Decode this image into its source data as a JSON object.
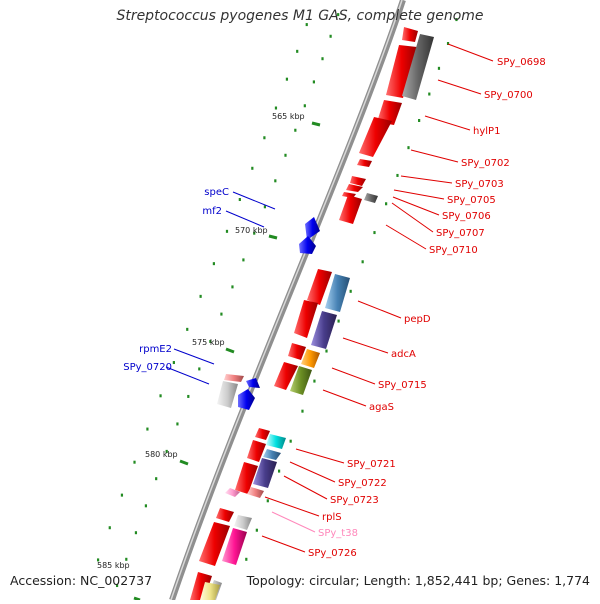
{
  "title": "Streptococcus pyogenes M1 GAS, complete genome",
  "accession": "Accession: NC_002737",
  "topology": "Topology: circular; Length: 1,852,441 bp; Genes: 1,774",
  "colors": {
    "backbone": "#888888",
    "forward_label": "#e00000",
    "reverse_label": "#0000cc",
    "tick": "#228B22",
    "rna_label": "#ff88bb"
  },
  "kbp_ticks": [
    {
      "label": "565 kbp"
    },
    {
      "label": "570 kbp"
    },
    {
      "label": "575 kbp"
    },
    {
      "label": "580 kbp"
    },
    {
      "label": "585 kbp"
    }
  ],
  "gene_labels": [
    {
      "text": "SPy_0698",
      "strand": "forward"
    },
    {
      "text": "SPy_0700",
      "strand": "forward"
    },
    {
      "text": "hylP1",
      "strand": "forward"
    },
    {
      "text": "SPy_0702",
      "strand": "forward"
    },
    {
      "text": "SPy_0703",
      "strand": "forward"
    },
    {
      "text": "SPy_0705",
      "strand": "forward"
    },
    {
      "text": "SPy_0706",
      "strand": "forward"
    },
    {
      "text": "SPy_0707",
      "strand": "forward"
    },
    {
      "text": "SPy_0710",
      "strand": "forward"
    },
    {
      "text": "pepD",
      "strand": "forward"
    },
    {
      "text": "adcA",
      "strand": "forward"
    },
    {
      "text": "SPy_0715",
      "strand": "forward"
    },
    {
      "text": "agaS",
      "strand": "forward"
    },
    {
      "text": "SPy_0721",
      "strand": "forward"
    },
    {
      "text": "SPy_0722",
      "strand": "forward"
    },
    {
      "text": "SPy_0723",
      "strand": "forward"
    },
    {
      "text": "rplS",
      "strand": "forward"
    },
    {
      "text": "SPy_t38",
      "strand": "rna"
    },
    {
      "text": "SPy_0726",
      "strand": "forward"
    },
    {
      "text": "speC",
      "strand": "reverse"
    },
    {
      "text": "mf2",
      "strand": "reverse"
    },
    {
      "text": "rpmE2",
      "strand": "reverse"
    },
    {
      "text": "SPy_0720",
      "strand": "reverse"
    }
  ]
}
